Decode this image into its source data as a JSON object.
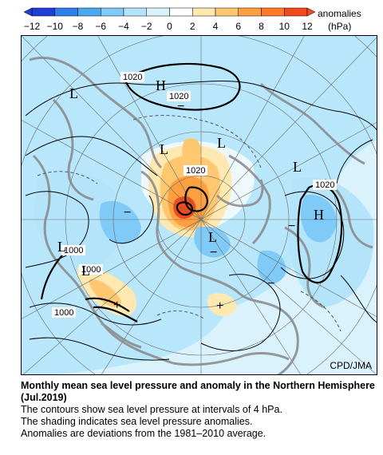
{
  "colorbar": {
    "ticks": [
      "−12",
      "−10",
      "−8",
      "−6",
      "−4",
      "−2",
      "0",
      "2",
      "4",
      "6",
      "8",
      "10",
      "12"
    ],
    "label_line1": "anomalies",
    "label_line2": "(hPa)",
    "colors": [
      "#1f3fd6",
      "#2e7fe8",
      "#4aa8f0",
      "#7fcaf6",
      "#b4e4fa",
      "#d9f2fc",
      "#ffffff",
      "#ffe9b0",
      "#ffc870",
      "#ffa040",
      "#ff7a28",
      "#f04a1e"
    ]
  },
  "map": {
    "pressure_labels": [
      "1020",
      "1020",
      "1020",
      "1020",
      "1000",
      "1000",
      "1000"
    ],
    "high_labels": [
      "H",
      "H"
    ],
    "low_labels": [
      "L",
      "L",
      "L",
      "L",
      "L",
      "L",
      "L"
    ],
    "plus_signs": [
      "+",
      "+"
    ],
    "minus_signs": [
      "−",
      "−",
      "−",
      "−",
      "−"
    ],
    "credit": "CPD/JMA"
  },
  "caption": {
    "title": "Monthly mean sea level pressure and anomaly in the Northern Hemisphere (Jul.2019)",
    "line1": "The contours show sea level pressure at intervals of 4 hPa.",
    "line2": "The shading indicates sea level pressure anomalies.",
    "line3": "Anomalies are deviations from the 1981–2010 average."
  }
}
